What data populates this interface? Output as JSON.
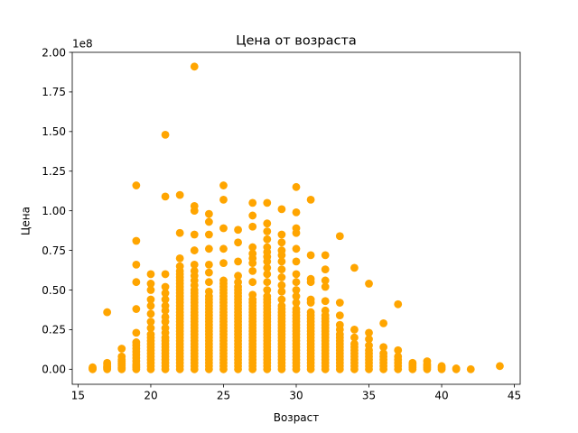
{
  "chart_data": {
    "type": "scatter",
    "title": "Цена от возраста",
    "xlabel": "Возраст",
    "ylabel": "Цена",
    "y_offset_label": "1e8",
    "y_scale_factor": 100000000,
    "xlim": [
      14.6,
      45.4
    ],
    "ylim": [
      -0.095,
      2.0
    ],
    "x_ticks": [
      15,
      20,
      25,
      30,
      35,
      40,
      45
    ],
    "x_tick_labels": [
      "15",
      "20",
      "25",
      "30",
      "35",
      "40",
      "45"
    ],
    "y_ticks": [
      0.0,
      0.25,
      0.5,
      0.75,
      1.0,
      1.25,
      1.5,
      1.75,
      2.0
    ],
    "y_tick_labels": [
      "0.00",
      "0.25",
      "0.50",
      "0.75",
      "1.00",
      "1.25",
      "1.50",
      "1.75",
      "2.00"
    ],
    "grid": false,
    "marker_color": "#ffa500",
    "columns": [
      {
        "x": 16,
        "y": [
          0.0,
          0.003,
          0.008,
          0.012
        ]
      },
      {
        "x": 17,
        "y": [
          0.0,
          0.005,
          0.01,
          0.015,
          0.02,
          0.03,
          0.04,
          0.36
        ]
      },
      {
        "x": 18,
        "y": [
          0.0,
          0.005,
          0.01,
          0.02,
          0.03,
          0.04,
          0.05,
          0.06,
          0.08,
          0.13
        ]
      },
      {
        "x": 19,
        "y": [
          0.0,
          0.01,
          0.02,
          0.03,
          0.05,
          0.07,
          0.09,
          0.11,
          0.13,
          0.15,
          0.17,
          0.23,
          0.38,
          0.55,
          0.66,
          0.81,
          1.16
        ]
      },
      {
        "x": 20,
        "y": [
          0.0,
          0.02,
          0.04,
          0.06,
          0.08,
          0.1,
          0.12,
          0.14,
          0.16,
          0.18,
          0.2,
          0.22,
          0.26,
          0.3,
          0.35,
          0.4,
          0.44,
          0.5,
          0.54,
          0.6
        ]
      },
      {
        "x": 21,
        "y": [
          0.0,
          0.02,
          0.04,
          0.06,
          0.08,
          0.1,
          0.12,
          0.14,
          0.16,
          0.18,
          0.2,
          0.23,
          0.26,
          0.3,
          0.33,
          0.37,
          0.4,
          0.44,
          0.48,
          0.52,
          0.6,
          1.09,
          1.48
        ]
      },
      {
        "x": 22,
        "y": [
          0.0,
          0.02,
          0.04,
          0.06,
          0.08,
          0.1,
          0.12,
          0.14,
          0.16,
          0.18,
          0.2,
          0.22,
          0.24,
          0.26,
          0.28,
          0.3,
          0.32,
          0.34,
          0.36,
          0.38,
          0.4,
          0.42,
          0.44,
          0.46,
          0.48,
          0.5,
          0.52,
          0.54,
          0.56,
          0.58,
          0.6,
          0.62,
          0.65,
          0.7,
          0.86,
          1.1
        ]
      },
      {
        "x": 23,
        "y": [
          0.0,
          0.02,
          0.04,
          0.06,
          0.08,
          0.1,
          0.12,
          0.14,
          0.16,
          0.18,
          0.2,
          0.22,
          0.24,
          0.26,
          0.28,
          0.3,
          0.32,
          0.34,
          0.36,
          0.38,
          0.4,
          0.42,
          0.44,
          0.46,
          0.48,
          0.5,
          0.53,
          0.56,
          0.59,
          0.62,
          0.66,
          0.75,
          0.85,
          1.0,
          1.03,
          1.91
        ]
      },
      {
        "x": 24,
        "y": [
          0.0,
          0.02,
          0.04,
          0.06,
          0.08,
          0.1,
          0.12,
          0.14,
          0.16,
          0.18,
          0.2,
          0.22,
          0.24,
          0.26,
          0.28,
          0.3,
          0.32,
          0.34,
          0.36,
          0.38,
          0.4,
          0.42,
          0.44,
          0.46,
          0.49,
          0.55,
          0.61,
          0.66,
          0.76,
          0.85,
          0.93,
          0.98
        ]
      },
      {
        "x": 25,
        "y": [
          0.0,
          0.02,
          0.04,
          0.06,
          0.08,
          0.1,
          0.12,
          0.14,
          0.16,
          0.18,
          0.2,
          0.22,
          0.24,
          0.26,
          0.28,
          0.3,
          0.32,
          0.34,
          0.36,
          0.38,
          0.4,
          0.42,
          0.44,
          0.46,
          0.48,
          0.5,
          0.52,
          0.54,
          0.56,
          0.67,
          0.76,
          0.89,
          1.07,
          1.16
        ]
      },
      {
        "x": 26,
        "y": [
          0.0,
          0.02,
          0.04,
          0.06,
          0.08,
          0.1,
          0.12,
          0.14,
          0.16,
          0.18,
          0.2,
          0.22,
          0.24,
          0.26,
          0.28,
          0.3,
          0.32,
          0.34,
          0.36,
          0.38,
          0.4,
          0.42,
          0.44,
          0.46,
          0.48,
          0.5,
          0.52,
          0.55,
          0.59,
          0.68,
          0.8,
          0.88
        ]
      },
      {
        "x": 27,
        "y": [
          0.0,
          0.02,
          0.04,
          0.06,
          0.08,
          0.1,
          0.12,
          0.14,
          0.16,
          0.18,
          0.2,
          0.22,
          0.24,
          0.26,
          0.28,
          0.3,
          0.32,
          0.34,
          0.36,
          0.38,
          0.4,
          0.42,
          0.44,
          0.47,
          0.55,
          0.62,
          0.67,
          0.7,
          0.73,
          0.77,
          0.9,
          0.97,
          1.05
        ]
      },
      {
        "x": 28,
        "y": [
          0.0,
          0.02,
          0.04,
          0.06,
          0.08,
          0.1,
          0.12,
          0.14,
          0.16,
          0.18,
          0.2,
          0.22,
          0.24,
          0.26,
          0.28,
          0.3,
          0.32,
          0.34,
          0.36,
          0.38,
          0.4,
          0.42,
          0.44,
          0.46,
          0.5,
          0.55,
          0.6,
          0.64,
          0.68,
          0.71,
          0.74,
          0.77,
          0.82,
          0.87,
          0.92,
          1.05
        ]
      },
      {
        "x": 29,
        "y": [
          0.0,
          0.02,
          0.04,
          0.06,
          0.08,
          0.1,
          0.12,
          0.14,
          0.16,
          0.18,
          0.2,
          0.22,
          0.24,
          0.26,
          0.28,
          0.3,
          0.32,
          0.34,
          0.36,
          0.38,
          0.4,
          0.44,
          0.49,
          0.53,
          0.58,
          0.63,
          0.68,
          0.72,
          0.75,
          0.8,
          0.85,
          1.01
        ]
      },
      {
        "x": 30,
        "y": [
          0.0,
          0.02,
          0.04,
          0.06,
          0.08,
          0.1,
          0.12,
          0.14,
          0.16,
          0.18,
          0.2,
          0.22,
          0.24,
          0.26,
          0.28,
          0.3,
          0.32,
          0.34,
          0.36,
          0.38,
          0.42,
          0.46,
          0.5,
          0.55,
          0.6,
          0.68,
          0.76,
          0.86,
          0.89,
          0.99,
          1.15
        ]
      },
      {
        "x": 31,
        "y": [
          0.0,
          0.02,
          0.04,
          0.06,
          0.08,
          0.1,
          0.12,
          0.14,
          0.16,
          0.18,
          0.2,
          0.22,
          0.24,
          0.26,
          0.28,
          0.3,
          0.32,
          0.34,
          0.36,
          0.42,
          0.44,
          0.55,
          0.57,
          0.72,
          1.07
        ]
      },
      {
        "x": 32,
        "y": [
          0.0,
          0.02,
          0.04,
          0.06,
          0.08,
          0.1,
          0.12,
          0.14,
          0.16,
          0.18,
          0.2,
          0.22,
          0.24,
          0.26,
          0.28,
          0.3,
          0.32,
          0.34,
          0.37,
          0.43,
          0.52,
          0.56,
          0.63,
          0.72
        ]
      },
      {
        "x": 33,
        "y": [
          0.0,
          0.02,
          0.04,
          0.06,
          0.08,
          0.1,
          0.12,
          0.14,
          0.16,
          0.18,
          0.2,
          0.22,
          0.25,
          0.28,
          0.34,
          0.42,
          0.84
        ]
      },
      {
        "x": 34,
        "y": [
          0.0,
          0.02,
          0.04,
          0.06,
          0.08,
          0.1,
          0.12,
          0.14,
          0.16,
          0.2,
          0.25,
          0.64
        ]
      },
      {
        "x": 35,
        "y": [
          0.0,
          0.02,
          0.04,
          0.06,
          0.08,
          0.1,
          0.12,
          0.15,
          0.19,
          0.23,
          0.54
        ]
      },
      {
        "x": 36,
        "y": [
          0.0,
          0.02,
          0.04,
          0.06,
          0.08,
          0.1,
          0.14,
          0.29
        ]
      },
      {
        "x": 37,
        "y": [
          0.0,
          0.02,
          0.04,
          0.06,
          0.08,
          0.12,
          0.41
        ]
      },
      {
        "x": 38,
        "y": [
          0.0,
          0.01,
          0.02,
          0.03,
          0.04
        ]
      },
      {
        "x": 39,
        "y": [
          0.0,
          0.01,
          0.02,
          0.03,
          0.05
        ]
      },
      {
        "x": 40,
        "y": [
          0.0,
          0.01,
          0.02
        ]
      },
      {
        "x": 41,
        "y": [
          0.0,
          0.005
        ]
      },
      {
        "x": 42,
        "y": [
          0.0
        ]
      },
      {
        "x": 44,
        "y": [
          0.02
        ]
      }
    ]
  }
}
